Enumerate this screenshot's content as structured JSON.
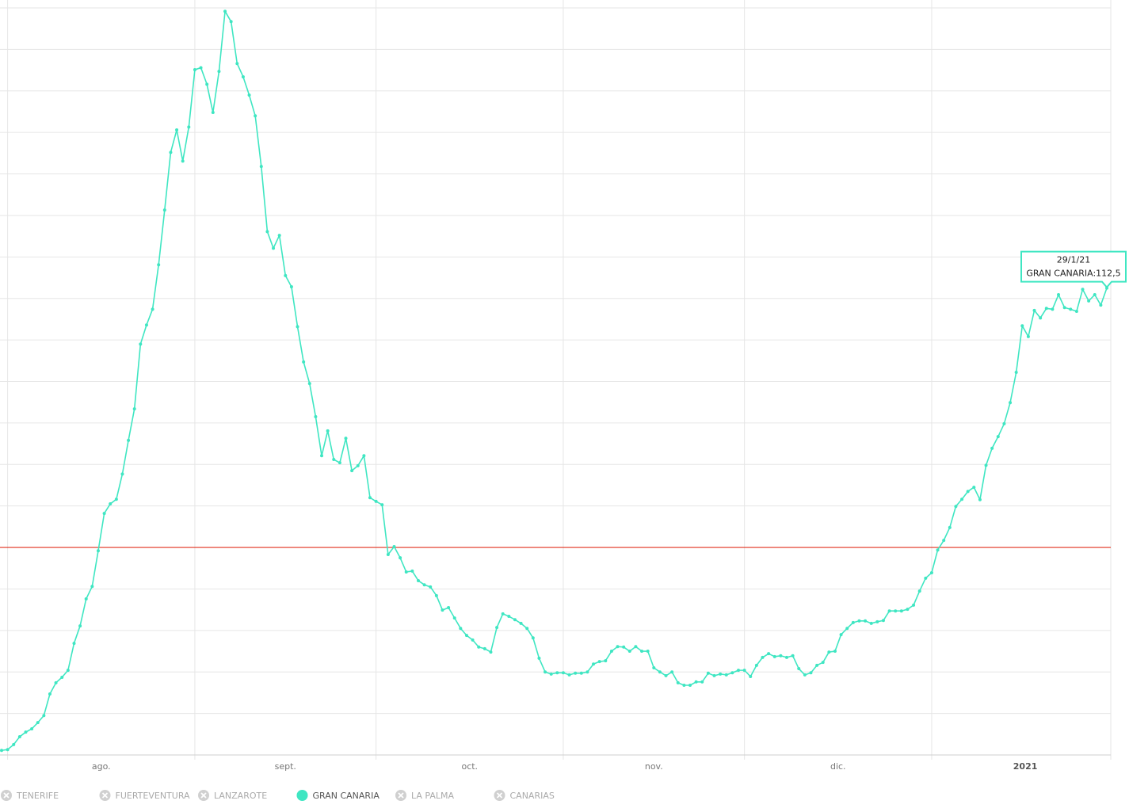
{
  "chart_data": {
    "type": "line",
    "categories": [
      null,
      "ago.",
      null,
      null,
      null,
      null,
      null,
      null,
      null,
      null,
      null,
      null,
      null,
      null,
      null,
      null,
      null,
      null,
      null,
      null,
      null,
      null,
      null,
      null,
      null,
      null,
      null,
      null,
      null,
      null,
      null,
      null,
      "sept.",
      null,
      null,
      null,
      null,
      null,
      null,
      null,
      null,
      null,
      null,
      null,
      null,
      null,
      null,
      null,
      null,
      null,
      null,
      null,
      null,
      null,
      null,
      null,
      null,
      null,
      null,
      null,
      null,
      null,
      "oct.",
      null,
      null,
      null,
      null,
      null,
      null,
      null,
      null,
      null,
      null,
      null,
      null,
      null,
      null,
      null,
      null,
      null,
      null,
      null,
      null,
      null,
      null,
      null,
      null,
      null,
      null,
      null,
      null,
      null,
      null,
      "nov.",
      null,
      null,
      null,
      null,
      null,
      null,
      null,
      null,
      null,
      null,
      null,
      null,
      null,
      null,
      null,
      null,
      null,
      null,
      null,
      null,
      null,
      null,
      null,
      null,
      null,
      null,
      null,
      null,
      null,
      "dic.",
      null,
      null,
      null,
      null,
      null,
      null,
      null,
      null,
      null,
      null,
      null,
      null,
      null,
      null,
      null,
      null,
      null,
      null,
      null,
      null,
      null,
      null,
      null,
      null,
      null,
      null,
      null,
      null,
      null,
      null,
      "2021",
      null,
      null,
      null,
      null,
      null,
      null,
      null,
      null,
      null,
      null,
      null,
      null,
      null,
      null,
      null,
      null,
      null,
      null,
      null,
      null,
      null,
      null,
      null,
      null,
      null,
      null,
      null,
      null,
      null
    ],
    "series": [
      {
        "name": "TENERIFE",
        "visible": false
      },
      {
        "name": "FUERTEVENTURA",
        "visible": false
      },
      {
        "name": "LANZAROTE",
        "visible": false
      },
      {
        "name": "GRAN CANARIA",
        "visible": true,
        "color": "#3fe6c2",
        "values": [
          1.1,
          1.3,
          2.5,
          4.4,
          5.5,
          6.3,
          7.8,
          9.5,
          14.7,
          17.4,
          18.7,
          20.4,
          26.9,
          31.1,
          37.6,
          40.6,
          49.2,
          58.2,
          60.5,
          61.6,
          67.7,
          75.8,
          83.4,
          99.0,
          103.6,
          107.4,
          118.1,
          131.3,
          145.2,
          150.6,
          143.1,
          151.3,
          165.1,
          165.6,
          161.6,
          154.8,
          164.7,
          179.2,
          176.7,
          166.6,
          163.4,
          159.0,
          154.0,
          141.8,
          126.1,
          122.1,
          125.2,
          115.5,
          112.8,
          103.2,
          94.7,
          89.5,
          81.5,
          72.1,
          78.1,
          71.2,
          70.4,
          76.3,
          68.5,
          69.7,
          72.1,
          62.0,
          61.1,
          60.3,
          48.3,
          50.2,
          47.5,
          44.1,
          44.3,
          42.0,
          41.0,
          40.5,
          38.4,
          34.9,
          35.5,
          33.0,
          30.5,
          28.8,
          27.7,
          26.0,
          25.6,
          24.8,
          30.7,
          34.0,
          33.4,
          32.6,
          31.7,
          30.5,
          28.2,
          23.3,
          20.0,
          19.5,
          19.8,
          19.8,
          19.3,
          19.7,
          19.7,
          20.0,
          21.9,
          22.5,
          22.7,
          25.0,
          26.1,
          26.0,
          25.0,
          26.1,
          25.0,
          25.0,
          21.0,
          20.0,
          19.1,
          20.0,
          17.4,
          16.8,
          16.8,
          17.6,
          17.6,
          19.7,
          19.1,
          19.5,
          19.3,
          19.8,
          20.4,
          20.4,
          18.9,
          21.6,
          23.5,
          24.4,
          23.7,
          23.9,
          23.5,
          23.9,
          20.8,
          19.3,
          19.8,
          21.6,
          22.3,
          24.8,
          25.0,
          29.0,
          30.5,
          31.9,
          32.3,
          32.3,
          31.7,
          32.1,
          32.4,
          34.7,
          34.7,
          34.7,
          35.1,
          36.1,
          39.5,
          42.6,
          43.9,
          49.4,
          51.7,
          54.8,
          59.9,
          61.6,
          63.5,
          64.5,
          61.5,
          69.8,
          73.9,
          76.7,
          79.8,
          84.9,
          92.2,
          103.4,
          100.8,
          107.1,
          105.3,
          107.6,
          107.4,
          110.9,
          107.8,
          107.4,
          106.9,
          112.2,
          109.4,
          110.9,
          108.4,
          112.5
        ]
      },
      {
        "name": "LA PALMA",
        "visible": false
      },
      {
        "name": "CANARIAS",
        "visible": false
      }
    ],
    "ylim": [
      0,
      180
    ],
    "yticks": [
      0,
      10,
      20,
      30,
      40,
      50,
      60,
      70,
      80,
      90,
      100,
      110,
      120,
      130,
      140,
      150,
      160,
      170,
      180
    ],
    "grid": true,
    "reference_line": {
      "value": 50,
      "color": "#e0301e"
    },
    "tooltip": {
      "date": "29/1/21",
      "label": "GRAN CANARIA:112,5"
    }
  }
}
